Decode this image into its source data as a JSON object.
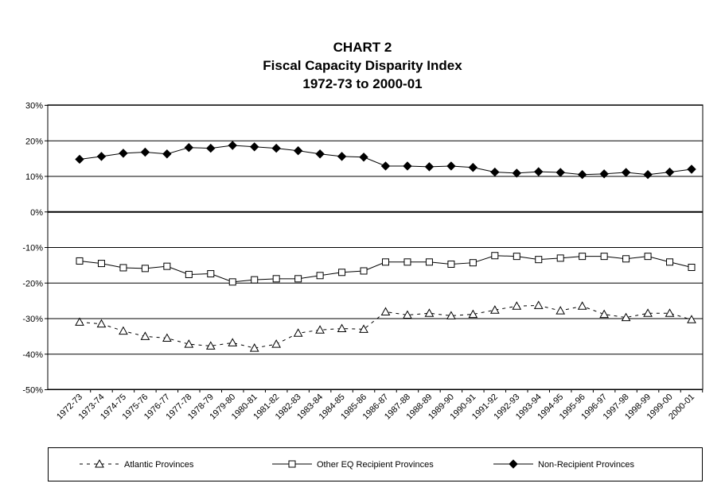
{
  "chart_data": {
    "type": "line",
    "title": [
      "CHART 2",
      "Fiscal Capacity Disparity Index",
      "1972-73 to 2000-01"
    ],
    "xlabel": "",
    "ylabel": "",
    "ylim": [
      -50,
      30
    ],
    "yticks": [
      "30%",
      "20%",
      "10%",
      "0%",
      "-10%",
      "-20%",
      "-30%",
      "-40%",
      "-50%"
    ],
    "ytick_values": [
      30,
      20,
      10,
      0,
      -10,
      -20,
      -30,
      -40,
      -50
    ],
    "grid": true,
    "legend_position": "bottom",
    "categories": [
      "1972-73",
      "1973-74",
      "1974-75",
      "1975-76",
      "1976-77",
      "1977-78",
      "1978-79",
      "1979-80",
      "1980-81",
      "1981-82",
      "1982-83",
      "1983-84",
      "1984-85",
      "1985-86",
      "1986-87",
      "1987-88",
      "1988-89",
      "1989-90",
      "1990-91",
      "1991-92",
      "1992-93",
      "1993-94",
      "1994-95",
      "1995-96",
      "1996-97",
      "1997-98",
      "1998-99",
      "1999-00",
      "2000-01"
    ],
    "series": [
      {
        "name": "Atlantic Provinces",
        "marker": "triangle-open",
        "dash": true,
        "values": [
          -31.1,
          -31.6,
          -33.6,
          -35.1,
          -35.6,
          -37.3,
          -37.8,
          -36.9,
          -38.4,
          -37.3,
          -34.2,
          -33.3,
          -32.9,
          -33.1,
          -28.2,
          -29.1,
          -28.6,
          -29.3,
          -28.9,
          -27.7,
          -26.6,
          -26.4,
          -27.9,
          -26.6,
          -28.9,
          -29.8,
          -28.6,
          -28.6,
          -30.4
        ]
      },
      {
        "name": "Other EQ Recipient Provinces",
        "marker": "square-open",
        "dash": false,
        "values": [
          -13.9,
          -14.6,
          -15.8,
          -16.0,
          -15.4,
          -17.7,
          -17.5,
          -19.8,
          -19.2,
          -18.9,
          -18.9,
          -18.0,
          -17.1,
          -16.7,
          -14.2,
          -14.2,
          -14.2,
          -14.8,
          -14.4,
          -12.4,
          -12.6,
          -13.5,
          -13.1,
          -12.6,
          -12.6,
          -13.3,
          -12.6,
          -14.2,
          -15.7
        ]
      },
      {
        "name": "Non-Recipient Provinces",
        "marker": "diamond-filled",
        "dash": false,
        "values": [
          14.7,
          15.5,
          16.4,
          16.7,
          16.2,
          18.0,
          17.8,
          18.6,
          18.2,
          17.8,
          17.1,
          16.2,
          15.5,
          15.3,
          12.8,
          12.8,
          12.6,
          12.8,
          12.4,
          11.1,
          10.8,
          11.2,
          11.0,
          10.4,
          10.6,
          11.0,
          10.4,
          11.1,
          11.9
        ]
      }
    ]
  }
}
